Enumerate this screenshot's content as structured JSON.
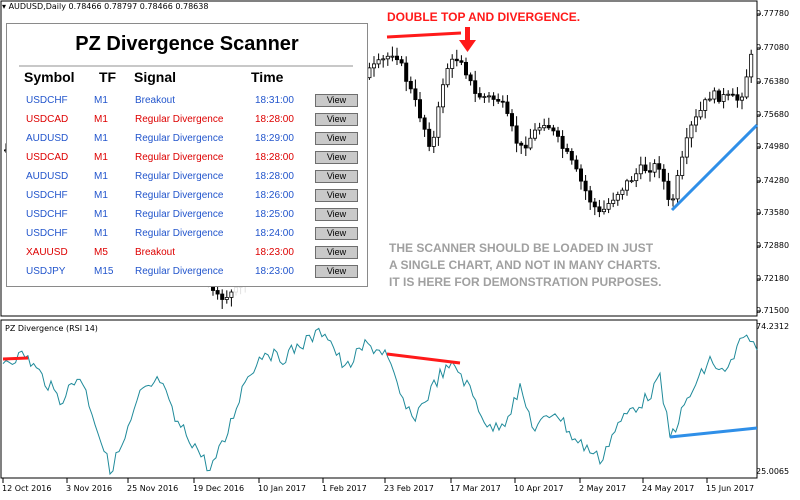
{
  "window": {
    "symbol_title": "AUDUSD,Daily",
    "ohlc": "0.78466 0.78797 0.78466 0.78638",
    "indicator_title": "PZ Divergence (RSI 14)"
  },
  "price_axis": [
    "0.77780",
    "0.77080",
    "0.76380",
    "0.75680",
    "0.74980",
    "0.74280",
    "0.73580",
    "0.72880",
    "0.72180",
    "0.71500"
  ],
  "rsi_axis": {
    "max": "74.2312",
    "min": "25.0065"
  },
  "date_axis": [
    "12 Oct 2016",
    "3 Nov 2016",
    "25 Nov 2016",
    "19 Dec 2016",
    "10 Jan 2017",
    "1 Feb 2017",
    "23 Feb 2017",
    "17 Mar 2017",
    "10 Apr 2017",
    "2 May 2017",
    "24 May 2017",
    "15 Jun 2017"
  ],
  "annotations": {
    "double_top": "DOUBLE TOP AND DIVERGENCE.",
    "note_lines": [
      "THE SCANNER SHOULD BE LOADED IN JUST",
      "A SINGLE CHART, AND NOT IN MANY CHARTS.",
      "IT IS HERE FOR DEMONSTRATION PURPOSES."
    ]
  },
  "scanner": {
    "title": "PZ Divergence Scanner",
    "headers": {
      "symbol": "Symbol",
      "tf": "TF",
      "signal": "Signal",
      "time": "Time"
    },
    "view_label": "View",
    "rows": [
      {
        "symbol": "USDCHF",
        "tf": "M1",
        "signal": "Breakout",
        "time": "18:31:00",
        "color": "#2255cc"
      },
      {
        "symbol": "USDCAD",
        "tf": "M1",
        "signal": "Regular Divergence",
        "time": "18:28:00",
        "color": "#dd0000"
      },
      {
        "symbol": "AUDUSD",
        "tf": "M1",
        "signal": "Regular Divergence",
        "time": "18:29:00",
        "color": "#2255cc"
      },
      {
        "symbol": "USDCAD",
        "tf": "M1",
        "signal": "Regular Divergence",
        "time": "18:28:00",
        "color": "#dd0000"
      },
      {
        "symbol": "AUDUSD",
        "tf": "M1",
        "signal": "Regular Divergence",
        "time": "18:28:00",
        "color": "#2255cc"
      },
      {
        "symbol": "USDCHF",
        "tf": "M1",
        "signal": "Regular Divergence",
        "time": "18:26:00",
        "color": "#2255cc"
      },
      {
        "symbol": "USDCHF",
        "tf": "M1",
        "signal": "Regular Divergence",
        "time": "18:25:00",
        "color": "#2255cc"
      },
      {
        "symbol": "USDCHF",
        "tf": "M1",
        "signal": "Regular Divergence",
        "time": "18:24:00",
        "color": "#2255cc"
      },
      {
        "symbol": "XAUUSD",
        "tf": "M5",
        "signal": "Breakout",
        "time": "18:23:00",
        "color": "#dd0000"
      },
      {
        "symbol": "USDJPY",
        "tf": "M15",
        "signal": "Regular Divergence",
        "time": "18:23:00",
        "color": "#2255cc"
      }
    ]
  },
  "colors": {
    "bull": "#ffffff",
    "bear": "#000000",
    "rsi_line": "#1f8a9a",
    "red_line": "#ff1a1a",
    "blue_line": "#2f8fe8"
  }
}
